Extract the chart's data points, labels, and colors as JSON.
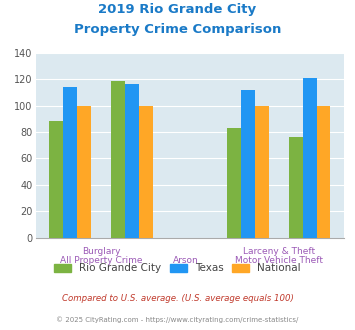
{
  "title_line1": "2019 Rio Grande City",
  "title_line2": "Property Crime Comparison",
  "title_color": "#1a7ac7",
  "groups": [
    {
      "label_top": "",
      "label_bot": "All Property Crime",
      "values": [
        88,
        114,
        100
      ]
    },
    {
      "label_top": "Burglary",
      "label_bot": "",
      "values": [
        119,
        116,
        100
      ]
    },
    {
      "label_top": "",
      "label_bot": "Arson",
      "values": [
        null,
        null,
        null
      ]
    },
    {
      "label_top": "Larceny & Theft",
      "label_bot": "",
      "values": [
        83,
        112,
        100
      ]
    },
    {
      "label_top": "",
      "label_bot": "Motor Vehicle Theft",
      "values": [
        76,
        121,
        100
      ]
    }
  ],
  "bar_colors": [
    "#7cb342",
    "#2196f3",
    "#ffa726"
  ],
  "legend_labels": [
    "Rio Grande City",
    "Texas",
    "National"
  ],
  "ylim": [
    0,
    140
  ],
  "yticks": [
    0,
    20,
    40,
    60,
    80,
    100,
    120,
    140
  ],
  "bg_color": "#dce9f0",
  "grid_color": "#ffffff",
  "bar_width": 0.18,
  "footnote1": "Compared to U.S. average. (U.S. average equals 100)",
  "footnote2": "© 2025 CityRating.com - https://www.cityrating.com/crime-statistics/",
  "footnote1_color": "#c0392b",
  "footnote2_color": "#888888",
  "tick_label_color": "#9b59b6",
  "positions": [
    0.35,
    1.15,
    1.85,
    2.65,
    3.45
  ]
}
